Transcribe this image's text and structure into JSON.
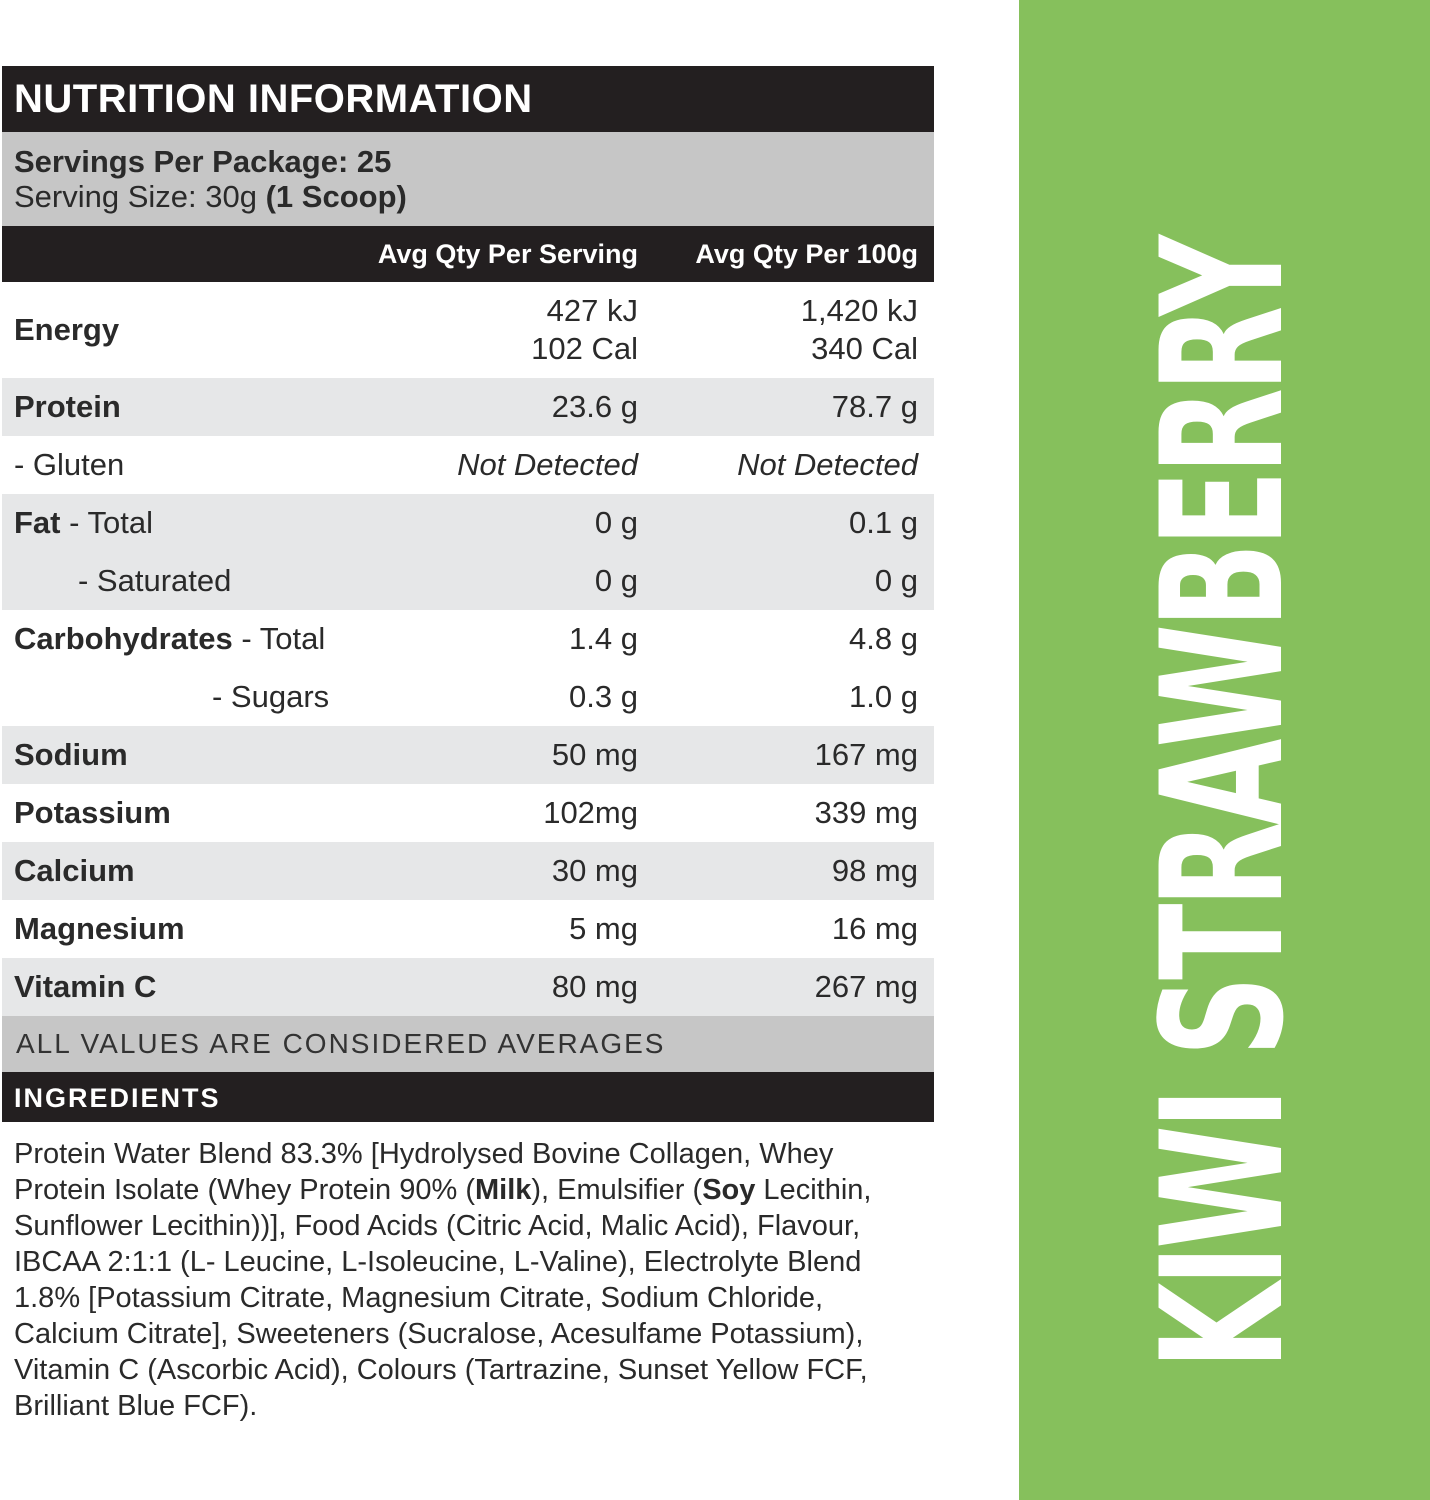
{
  "title": "NUTRITION INFORMATION",
  "servings_per_package": "Servings Per Package: 25",
  "serving_size_prefix": "Serving Size: 30g",
  "serving_size_bold": "(1 Scoop)",
  "columns": {
    "per_serving": "Avg Qty Per Serving",
    "per_100g": "Avg Qty Per 100g"
  },
  "rows": {
    "energy": {
      "label": "Energy",
      "s1": "427 kJ",
      "s2": "102 Cal",
      "h1": "1,420 kJ",
      "h2": "340 Cal"
    },
    "protein": {
      "label": "Protein",
      "s": "23.6 g",
      "h": "78.7 g"
    },
    "gluten": {
      "label": "- Gluten",
      "s": "Not Detected",
      "h": "Not Detected"
    },
    "fat_total": {
      "label_bold": "Fat",
      "label": " - Total",
      "s": "0 g",
      "h": "0.1 g"
    },
    "fat_saturated": {
      "label": "- Saturated",
      "s": "0 g",
      "h": "0 g"
    },
    "carbs_total": {
      "label_bold": "Carbohydrates",
      "label": " - Total",
      "s": "1.4 g",
      "h": "4.8 g"
    },
    "sugars": {
      "label": "- Sugars",
      "s": "0.3 g",
      "h": "1.0 g"
    },
    "sodium": {
      "label": "Sodium",
      "s": "50 mg",
      "h": "167 mg"
    },
    "potassium": {
      "label": "Potassium",
      "s": "102mg",
      "h": "339 mg"
    },
    "calcium": {
      "label": "Calcium",
      "s": "30 mg",
      "h": "98 mg"
    },
    "magnesium": {
      "label": "Magnesium",
      "s": "5 mg",
      "h": "16 mg"
    },
    "vitamin_c": {
      "label": "Vitamin C",
      "s": "80 mg",
      "h": "267 mg"
    }
  },
  "footer_note": "ALL VALUES ARE CONSIDERED AVERAGES",
  "ingredients": {
    "heading": "INGREDIENTS",
    "p1": "Protein Water Blend 83.3% [Hydrolysed Bovine Collagen, Whey Protein Isolate (Whey Protein 90% (",
    "milk": "Milk",
    "p2": "), Emulsifier (",
    "soy": "Soy",
    "p3": " Lecithin, Sunflower Lecithin))], Food Acids (Citric Acid, Malic Acid), Flavour, IBCAA 2:1:1 (L- Leucine, L-Isoleucine, L-Valine), Electrolyte Blend 1.8% [Potassium Citrate, Magnesium Citrate, Sodium Chloride, Calcium Citrate], Sweeteners (Sucralose, Acesulfame Potassium), Vitamin C (Ascorbic Acid), Colours (Tartrazine, Sunset Yellow FCF, Brilliant Blue FCF)."
  },
  "flavour": "KIWI STRAWBERRY",
  "colors": {
    "band": "#86c05c",
    "header": "#231f20",
    "grey": "#c6c6c6",
    "alt_row": "#e6e7e8"
  }
}
